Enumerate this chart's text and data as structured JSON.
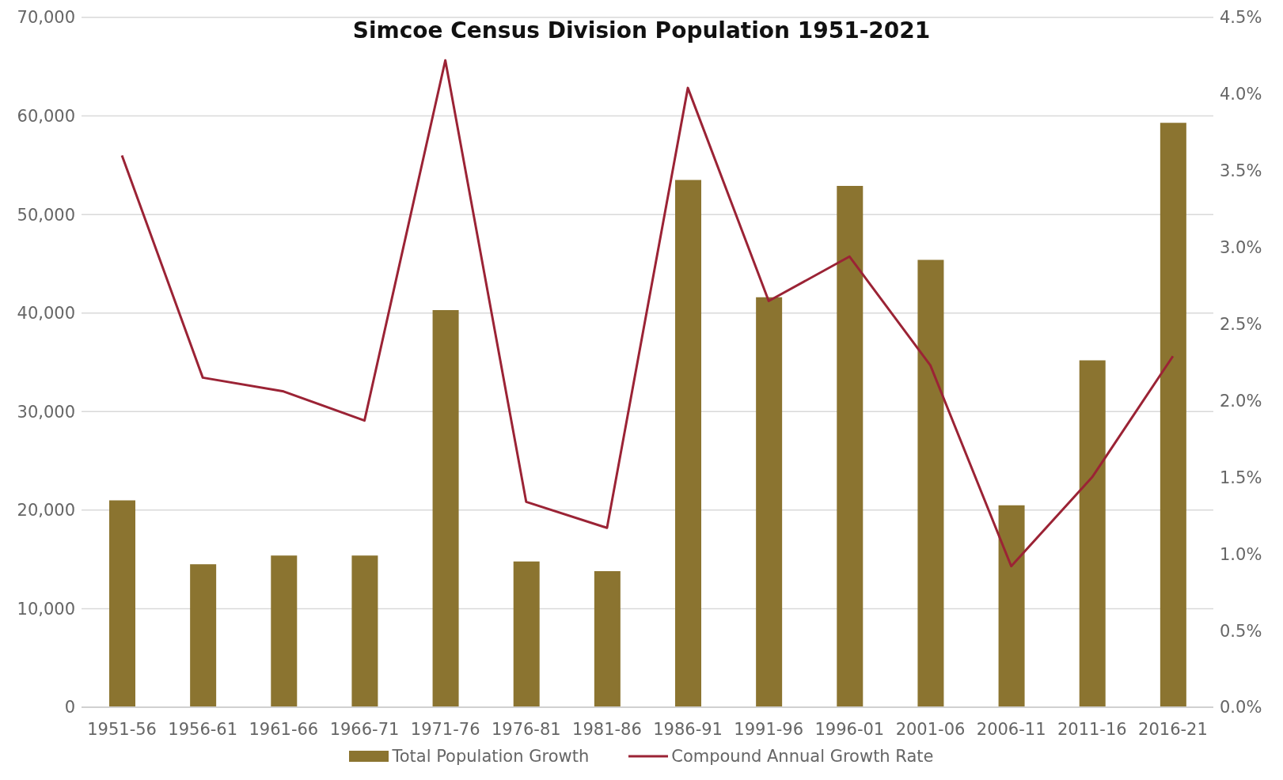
{
  "chart_data": {
    "type": "bar",
    "title": "Simcoe Census Division Population 1951-2021",
    "categories": [
      "1951-56",
      "1956-61",
      "1961-66",
      "1966-71",
      "1971-76",
      "1976-81",
      "1981-86",
      "1986-91",
      "1991-96",
      "1996-01",
      "2001-06",
      "2006-11",
      "2011-16",
      "2016-21"
    ],
    "series": [
      {
        "name": "Total Population Growth",
        "color": "#8b7430",
        "values": [
          21000,
          14500,
          15400,
          15400,
          40300,
          14800,
          13800,
          53500,
          41600,
          52900,
          45400,
          20500,
          35200,
          59300
        ]
      },
      {
        "name": "Compound Annual Growth Rate",
        "type": "line",
        "axis": "y2",
        "color": "#9b2335",
        "values": [
          3.6,
          2.15,
          2.06,
          1.87,
          4.22,
          1.34,
          1.17,
          4.04,
          2.65,
          2.94,
          2.23,
          0.92,
          1.5,
          2.29
        ]
      }
    ],
    "ylim": [
      0,
      70000
    ],
    "yticks": [
      {
        "value": 0,
        "label": "0"
      },
      {
        "value": 10000,
        "label": "10,000"
      },
      {
        "value": 20000,
        "label": "20,000"
      },
      {
        "value": 30000,
        "label": "30,000"
      },
      {
        "value": 40000,
        "label": "40,000"
      },
      {
        "value": 50000,
        "label": "50,000"
      },
      {
        "value": 60000,
        "label": "60,000"
      },
      {
        "value": 70000,
        "label": "70,000"
      }
    ],
    "y2lim": [
      0,
      4.5
    ],
    "y2ticks": [
      {
        "value": 0,
        "label": "0.0%"
      },
      {
        "value": 0.5,
        "label": "0.5%"
      },
      {
        "value": 1,
        "label": "1.0%"
      },
      {
        "value": 1.5,
        "label": "1.5%"
      },
      {
        "value": 2,
        "label": "2.0%"
      },
      {
        "value": 2.5,
        "label": "2.5%"
      },
      {
        "value": 3,
        "label": "3.0%"
      },
      {
        "value": 3.5,
        "label": "3.5%"
      },
      {
        "value": 4,
        "label": "4.0%"
      },
      {
        "value": 4.5,
        "label": "4.5%"
      }
    ],
    "grid": "y",
    "legend": "bottom",
    "marker": "none",
    "line_style": "solid"
  }
}
